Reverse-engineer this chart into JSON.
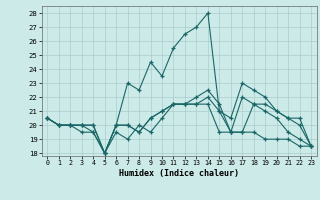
{
  "xlabel": "Humidex (Indice chaleur)",
  "ylabel": "",
  "xlim": [
    -0.5,
    23.5
  ],
  "ylim": [
    17.8,
    28.5
  ],
  "yticks": [
    18,
    19,
    20,
    21,
    22,
    23,
    24,
    25,
    26,
    27,
    28
  ],
  "xticks": [
    0,
    1,
    2,
    3,
    4,
    5,
    6,
    7,
    8,
    9,
    10,
    11,
    12,
    13,
    14,
    15,
    16,
    17,
    18,
    19,
    20,
    21,
    22,
    23
  ],
  "bg_color": "#cceae8",
  "grid_color": "#aacccc",
  "line_color": "#1a6666",
  "lines": [
    [
      20.5,
      20.0,
      20.0,
      19.5,
      19.5,
      18.0,
      19.5,
      19.0,
      20.0,
      19.5,
      20.5,
      21.5,
      21.5,
      21.5,
      21.5,
      19.5,
      19.5,
      19.5,
      19.5,
      19.0,
      19.0,
      19.0,
      18.5,
      18.5
    ],
    [
      20.5,
      20.0,
      20.0,
      20.0,
      19.5,
      18.0,
      20.0,
      23.0,
      22.5,
      24.5,
      23.5,
      25.5,
      26.5,
      27.0,
      28.0,
      21.0,
      20.5,
      23.0,
      22.5,
      22.0,
      21.0,
      20.5,
      20.5,
      18.5
    ],
    [
      20.5,
      20.0,
      20.0,
      20.0,
      20.0,
      18.0,
      20.0,
      20.0,
      19.5,
      20.5,
      21.0,
      21.5,
      21.5,
      22.0,
      22.5,
      21.5,
      19.5,
      22.0,
      21.5,
      21.5,
      21.0,
      20.5,
      20.0,
      18.5
    ],
    [
      20.5,
      20.0,
      20.0,
      20.0,
      20.0,
      18.0,
      20.0,
      20.0,
      19.5,
      20.5,
      21.0,
      21.5,
      21.5,
      21.5,
      22.0,
      21.0,
      19.5,
      19.5,
      21.5,
      21.0,
      20.5,
      19.5,
      19.0,
      18.5
    ]
  ]
}
